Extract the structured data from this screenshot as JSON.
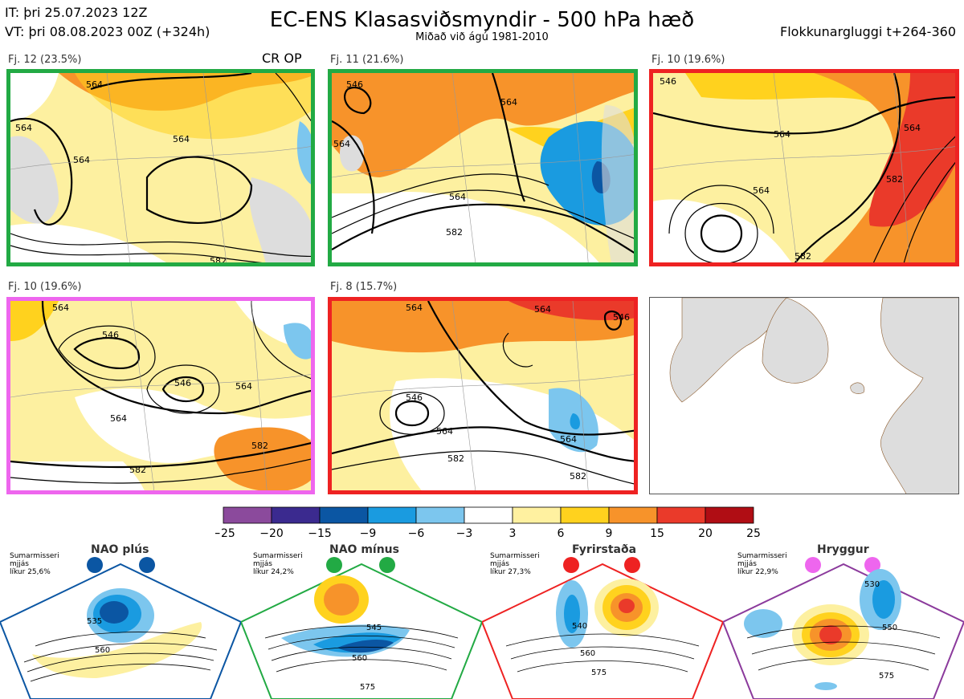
{
  "header": {
    "it_line": "IT: þri 25.07.2023 12Z",
    "vt_line": "VT: þri 08.08.2023 00Z  (+324h)",
    "title": "EC-ENS Klasasviðsmyndir - 500 hPa hæð",
    "subtitle": "Miðað við ágú 1981-2010",
    "window_label": "Flokkunargluggi t+264-360"
  },
  "clusters": [
    {
      "label": "Fj. 12 (23.5%)",
      "frame_color": "#22aa44",
      "cr_op": "CR OP",
      "contour_labels": [
        "564",
        "564",
        "564",
        "564",
        "582"
      ]
    },
    {
      "label": "Fj. 11 (21.6%)",
      "frame_color": "#22aa44",
      "cr_op": "",
      "contour_labels": [
        "546",
        "564",
        "564",
        "564",
        "582"
      ]
    },
    {
      "label": "Fj. 10 (19.6%)",
      "frame_color": "#ee2222",
      "cr_op": "",
      "contour_labels": [
        "546",
        "564",
        "564",
        "564",
        "582",
        "582"
      ]
    },
    {
      "label": "Fj. 10 (19.6%)",
      "frame_color": "#ee66ee",
      "cr_op": "",
      "contour_labels": [
        "564",
        "546",
        "546",
        "564",
        "564",
        "582",
        "582"
      ]
    },
    {
      "label": "Fj. 8 (15.7%)",
      "frame_color": "#ee2222",
      "cr_op": "",
      "contour_labels": [
        "564",
        "564",
        "546",
        "546",
        "564",
        "564",
        "582",
        "582"
      ]
    }
  ],
  "legend": {
    "ticks": [
      "−25",
      "−20",
      "−15",
      "−9",
      "−6",
      "−3",
      "3",
      "6",
      "9",
      "15",
      "20",
      "25"
    ],
    "colors": [
      "#8b4a9c",
      "#3b2a8f",
      "#0b56a3",
      "#1a9be0",
      "#7cc6ee",
      "#ffffff",
      "#fff1a0",
      "#ffd21e",
      "#f7932a",
      "#ea3a2a",
      "#b00d14"
    ],
    "values": [
      -25,
      -20,
      -15,
      -9,
      -6,
      -3,
      3,
      6,
      9,
      15,
      20,
      25
    ]
  },
  "regimes": [
    {
      "name": "NAO plús",
      "season": "Sumarmisseri",
      "smoothing": "mjjás",
      "probability": "líkur 25,6%",
      "color": "#0b56a3",
      "contours": [
        "535",
        "560"
      ]
    },
    {
      "name": "NAO mínus",
      "season": "Sumarmisseri",
      "smoothing": "mjjás",
      "probability": "líkur 24,2%",
      "color": "#22aa44",
      "contours": [
        "545",
        "560",
        "575"
      ]
    },
    {
      "name": "Fyrirstaða",
      "season": "Sumarmisseri",
      "smoothing": "mjjás",
      "probability": "líkur 27,3%",
      "color": "#ee2222",
      "contours": [
        "540",
        "560",
        "575"
      ]
    },
    {
      "name": "Hryggur",
      "season": "Sumarmisseri",
      "smoothing": "mjjás",
      "probability": "líkur 22,9%",
      "color": "#ee66ee",
      "contours": [
        "530",
        "550",
        "575"
      ]
    }
  ]
}
